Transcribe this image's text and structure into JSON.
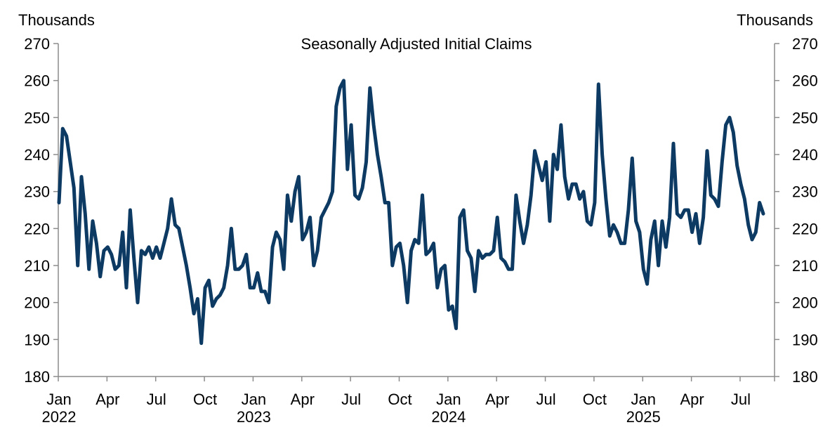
{
  "chart_data": {
    "type": "line",
    "title": "Seasonally Adjusted Initial Claims",
    "left_axis_unit": "Thousands",
    "right_axis_unit": "Thousands",
    "ylim": [
      180,
      270
    ],
    "yticks": [
      180,
      190,
      200,
      210,
      220,
      230,
      240,
      250,
      260,
      270
    ],
    "ytick_labels": [
      "180",
      "190",
      "200",
      "210",
      "220",
      "230",
      "240",
      "250",
      "260",
      "270"
    ],
    "x_ticks": [
      {
        "month_label": "Jan",
        "year_label": "2022",
        "week": 0
      },
      {
        "month_label": "Apr",
        "year_label": "",
        "week": 13
      },
      {
        "month_label": "Jul",
        "year_label": "",
        "week": 26
      },
      {
        "month_label": "Oct",
        "year_label": "",
        "week": 39
      },
      {
        "month_label": "Jan",
        "year_label": "2023",
        "week": 52
      },
      {
        "month_label": "Apr",
        "year_label": "",
        "week": 65
      },
      {
        "month_label": "Jul",
        "year_label": "",
        "week": 78
      },
      {
        "month_label": "Oct",
        "year_label": "",
        "week": 91
      },
      {
        "month_label": "Jan",
        "year_label": "2024",
        "week": 104
      },
      {
        "month_label": "Apr",
        "year_label": "",
        "week": 117
      },
      {
        "month_label": "Jul",
        "year_label": "",
        "week": 130
      },
      {
        "month_label": "Oct",
        "year_label": "",
        "week": 143
      },
      {
        "month_label": "Jan",
        "year_label": "2025",
        "week": 156
      },
      {
        "month_label": "Apr",
        "year_label": "",
        "week": 169
      },
      {
        "month_label": "Jul",
        "year_label": "",
        "week": 182
      }
    ],
    "xlim_weeks": [
      0,
      195
    ],
    "line_color": "#0d3a63",
    "grid": false,
    "legend": "none",
    "series": [
      {
        "values": [
          227,
          247,
          245,
          238,
          231,
          210,
          234,
          224,
          209,
          222,
          216,
          207,
          214,
          215,
          213,
          209,
          210,
          219,
          204,
          225,
          212,
          200,
          214,
          213,
          215,
          212,
          215,
          212,
          216,
          220,
          228,
          221,
          220,
          215,
          210,
          204,
          197,
          201,
          189,
          204,
          206,
          199,
          201,
          202,
          204,
          210,
          220,
          209,
          209,
          210,
          213,
          204,
          204,
          208,
          203,
          203,
          200,
          215,
          219,
          217,
          209,
          229,
          222,
          230,
          234,
          217,
          219,
          223,
          210,
          214,
          223,
          225,
          227,
          230,
          253,
          258,
          260,
          236,
          248,
          229,
          228,
          231,
          238,
          258,
          248,
          240,
          234,
          227,
          227,
          210,
          215,
          216,
          210,
          200,
          214,
          217,
          216,
          229,
          213,
          214,
          216,
          204,
          209,
          210,
          198,
          199,
          193,
          223,
          225,
          214,
          212,
          203,
          214,
          212,
          213,
          213,
          214,
          223,
          212,
          211,
          209,
          209,
          229,
          222,
          216,
          221,
          229,
          241,
          237,
          233,
          238,
          222,
          240,
          236,
          248,
          234,
          228,
          232,
          232,
          228,
          230,
          222,
          221,
          227,
          259,
          240,
          228,
          218,
          221,
          219,
          216,
          216,
          225,
          239,
          222,
          219,
          209,
          205,
          217,
          222,
          210,
          222,
          215,
          223,
          243,
          224,
          223,
          225,
          225,
          219,
          224,
          216,
          223,
          241,
          229,
          228,
          226,
          238,
          248,
          250,
          246,
          237,
          232,
          228,
          221,
          217,
          219,
          227,
          224
        ]
      }
    ]
  }
}
